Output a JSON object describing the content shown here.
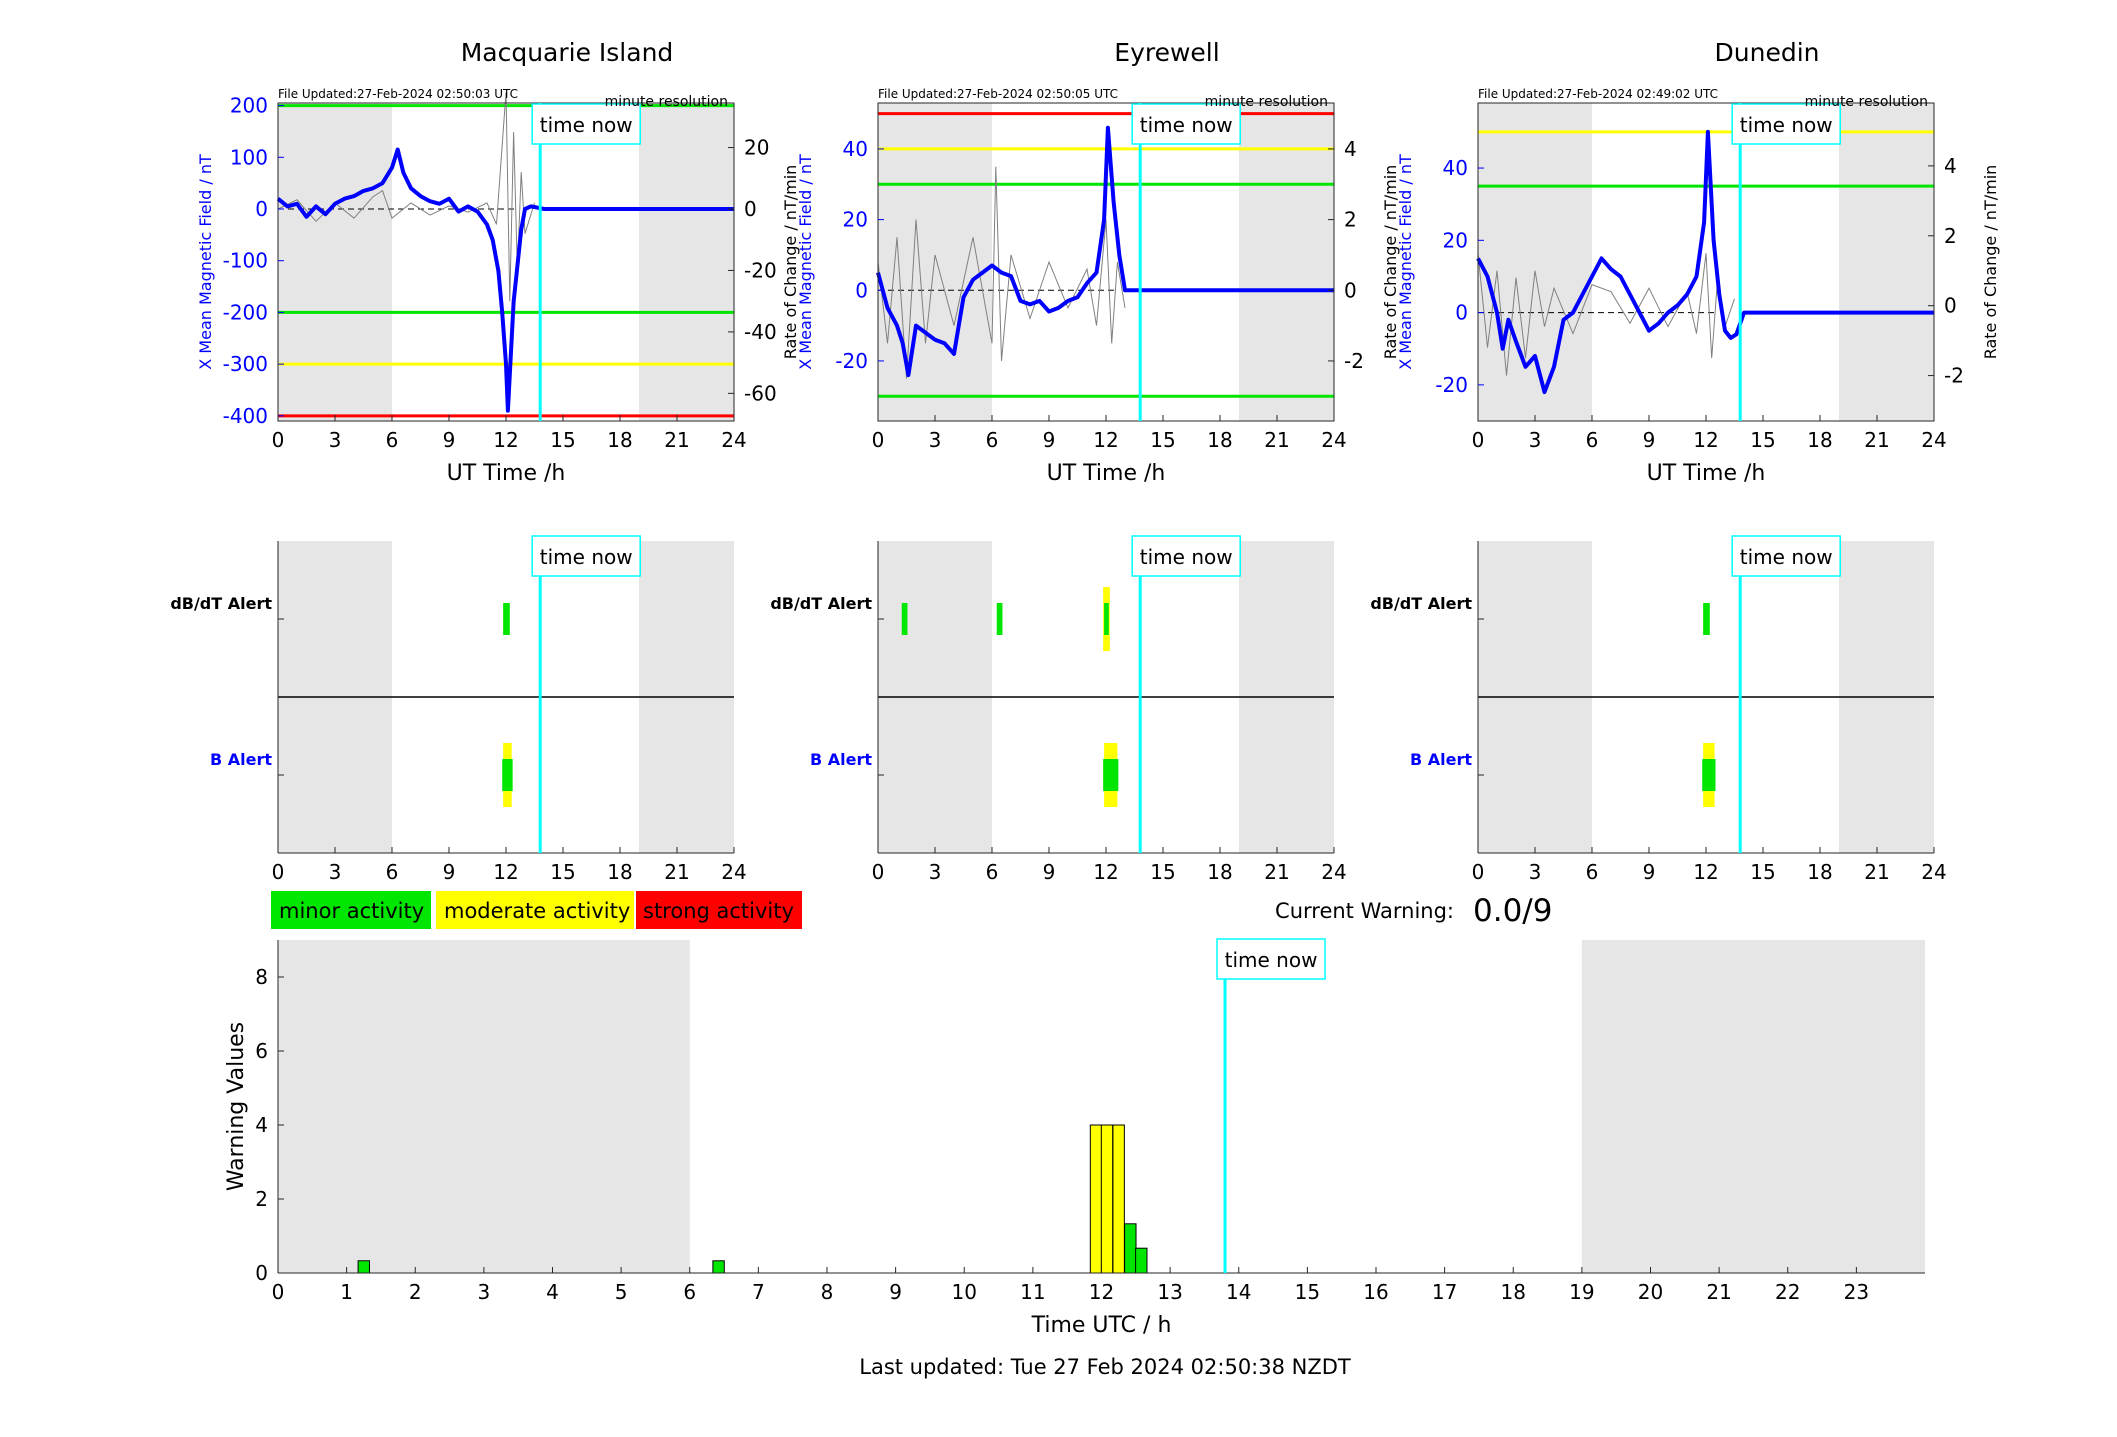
{
  "page": {
    "last_updated": "Last updated: Tue 27 Feb 2024 02:50:38 NZDT"
  },
  "now_label": "time now",
  "now_hour": 13.8,
  "colors": {
    "minor": "#00e600",
    "moderate": "#ffff00",
    "strong": "#ff0000",
    "field": "#0000ff",
    "rate": "#808080",
    "now": "#00ffff",
    "shade": "#e6e6e6"
  },
  "station_axes": {
    "x_label": "UT Time /h",
    "x_ticks": [
      "0",
      "3",
      "6",
      "9",
      "12",
      "15",
      "18",
      "21",
      "24"
    ],
    "left_label": "X Mean Magnetic Field / nT",
    "right_label": "Rate of Change / nT/min",
    "updated_prefix": "File Updated:",
    "resolution": "minute resolution"
  },
  "alert_labels": {
    "dbdt": "dB/dT Alert",
    "b": "B Alert"
  },
  "legend": [
    "minor activity",
    "moderate activity",
    "strong activity"
  ],
  "current_warning": {
    "label": "Current Warning:",
    "value": "0.0/9"
  },
  "chart_data": [
    {
      "type": "line",
      "title": "Macquarie Island",
      "file_updated": "27-Feb-2024 02:50:03 UTC",
      "xlim": [
        0,
        24
      ],
      "ylim_left": [
        -410,
        205
      ],
      "ylim_right": [
        -69,
        34.5
      ],
      "yticks_left": [
        200,
        100,
        0,
        -100,
        -200,
        -300,
        -400
      ],
      "yticks_right": [
        20,
        0,
        -20,
        -40,
        -60
      ],
      "night_shading": [
        [
          0,
          6
        ],
        [
          19,
          24
        ]
      ],
      "thresholds": [
        {
          "value": 200,
          "color": "green"
        },
        {
          "value": -200,
          "color": "green"
        },
        {
          "value": -300,
          "color": "yellow"
        },
        {
          "value": -400,
          "color": "red"
        }
      ],
      "field_series": {
        "x": [
          0,
          0.5,
          1,
          1.5,
          2,
          2.5,
          3,
          3.5,
          4,
          4.5,
          5,
          5.5,
          6,
          6.3,
          6.6,
          7,
          7.5,
          8,
          8.5,
          9,
          9.5,
          10,
          10.5,
          11,
          11.3,
          11.6,
          11.8,
          12,
          12.1,
          12.2,
          12.4,
          12.6,
          12.8,
          13,
          13.3,
          13.6,
          14,
          24
        ],
        "y": [
          20,
          5,
          10,
          -15,
          5,
          -10,
          10,
          20,
          25,
          35,
          40,
          50,
          80,
          115,
          70,
          40,
          25,
          15,
          10,
          20,
          -5,
          5,
          -5,
          -30,
          -60,
          -120,
          -200,
          -300,
          -390,
          -320,
          -180,
          -110,
          -40,
          0,
          5,
          3,
          0,
          0
        ]
      },
      "rate_series": {
        "x": [
          0,
          1,
          2,
          3,
          4,
          5,
          5.5,
          6,
          7,
          8,
          9,
          10,
          11,
          11.5,
          12,
          12.2,
          12.4,
          12.6,
          12.8,
          13,
          13.5
        ],
        "y": [
          0,
          3,
          -4,
          2,
          -3,
          4,
          6,
          -3,
          2,
          -2,
          1,
          -1,
          2,
          -5,
          38,
          -30,
          25,
          -20,
          12,
          -8,
          2
        ]
      },
      "alerts": {
        "dbdt": [
          {
            "start": 11.85,
            "end": 12.2,
            "level": "minor"
          }
        ],
        "b": [
          {
            "start": 11.85,
            "end": 12.3,
            "level": "moderate"
          },
          {
            "start": 11.8,
            "end": 12.35,
            "level": "minor"
          }
        ]
      }
    },
    {
      "type": "line",
      "title": "Eyrewell",
      "file_updated": "27-Feb-2024 02:50:05 UTC",
      "xlim": [
        0,
        24
      ],
      "ylim_left": [
        -37,
        53
      ],
      "ylim_right": [
        -3.7,
        5.3
      ],
      "yticks_left": [
        40,
        20,
        0,
        -20
      ],
      "yticks_right": [
        4,
        2,
        0,
        -2
      ],
      "night_shading": [
        [
          0,
          6
        ],
        [
          19,
          24
        ]
      ],
      "thresholds": [
        {
          "value": 50,
          "color": "red"
        },
        {
          "value": 40,
          "color": "yellow"
        },
        {
          "value": 30,
          "color": "green"
        },
        {
          "value": -30,
          "color": "green"
        }
      ],
      "field_series": {
        "x": [
          0,
          0.5,
          1,
          1.3,
          1.6,
          2,
          2.5,
          3,
          3.5,
          4,
          4.5,
          5,
          5.5,
          6,
          6.5,
          7,
          7.5,
          8,
          8.5,
          9,
          9.5,
          10,
          10.5,
          11,
          11.5,
          11.9,
          12.1,
          12.4,
          12.7,
          13,
          13.2,
          24
        ],
        "y": [
          5,
          -5,
          -10,
          -15,
          -24,
          -10,
          -12,
          -14,
          -15,
          -18,
          -2,
          3,
          5,
          7,
          5,
          4,
          -3,
          -4,
          -3,
          -6,
          -5,
          -3,
          -2,
          2,
          5,
          20,
          46,
          25,
          10,
          0,
          0,
          0
        ]
      },
      "rate_series": {
        "x": [
          0,
          0.5,
          1,
          1.5,
          2,
          2.5,
          3,
          4,
          5,
          6,
          6.2,
          6.5,
          7,
          8,
          9,
          10,
          11,
          11.5,
          12,
          12.3,
          12.6,
          13
        ],
        "y": [
          0.8,
          -1.5,
          1.5,
          -2.5,
          2,
          -1.5,
          1,
          -1,
          1.5,
          -1.5,
          3.5,
          -2,
          1,
          -0.8,
          0.8,
          -0.5,
          0.6,
          -1,
          2,
          -1.5,
          0.8,
          -0.5
        ]
      },
      "alerts": {
        "dbdt": [
          {
            "start": 1.25,
            "end": 1.55,
            "level": "minor"
          },
          {
            "start": 6.25,
            "end": 6.55,
            "level": "minor"
          },
          {
            "start": 11.85,
            "end": 12.2,
            "level": "moderate"
          },
          {
            "start": 11.9,
            "end": 12.15,
            "level": "minor"
          }
        ],
        "b": [
          {
            "start": 11.9,
            "end": 12.6,
            "level": "moderate"
          },
          {
            "start": 11.85,
            "end": 12.65,
            "level": "minor"
          }
        ]
      }
    },
    {
      "type": "line",
      "title": "Dunedin",
      "file_updated": "27-Feb-2024 02:49:02 UTC",
      "xlim": [
        0,
        24
      ],
      "ylim_left": [
        -30,
        58
      ],
      "ylim_right": [
        -3.3,
        5.8
      ],
      "yticks_left": [
        40,
        20,
        0,
        -20
      ],
      "yticks_right": [
        4,
        2,
        0,
        -2
      ],
      "night_shading": [
        [
          0,
          6
        ],
        [
          19,
          24
        ]
      ],
      "thresholds": [
        {
          "value": 50,
          "color": "yellow"
        },
        {
          "value": 35,
          "color": "green"
        }
      ],
      "field_series": {
        "x": [
          0,
          0.5,
          1,
          1.3,
          1.6,
          2,
          2.5,
          3,
          3.5,
          4,
          4.5,
          5,
          5.5,
          6,
          6.5,
          7,
          7.5,
          8,
          8.5,
          9,
          9.5,
          10,
          10.5,
          11,
          11.5,
          11.9,
          12.1,
          12.4,
          12.7,
          13,
          13.3,
          13.6,
          14,
          24
        ],
        "y": [
          15,
          10,
          0,
          -10,
          -2,
          -8,
          -15,
          -12,
          -22,
          -15,
          -2,
          0,
          5,
          10,
          15,
          12,
          10,
          5,
          0,
          -5,
          -3,
          0,
          2,
          5,
          10,
          25,
          50,
          20,
          5,
          -5,
          -7,
          -6,
          0,
          0
        ]
      },
      "rate_series": {
        "x": [
          0,
          0.5,
          1,
          1.5,
          2,
          2.5,
          3,
          3.5,
          4,
          5,
          6,
          7,
          8,
          9,
          10,
          11,
          11.5,
          12,
          12.3,
          12.6,
          13,
          13.5
        ],
        "y": [
          1.5,
          -1.2,
          1,
          -2,
          0.8,
          -1.5,
          1,
          -0.6,
          0.5,
          -0.8,
          0.6,
          0.4,
          -0.5,
          0.5,
          -0.6,
          0.4,
          -0.8,
          1.5,
          -1.5,
          0.7,
          -0.6,
          0.2
        ]
      },
      "alerts": {
        "dbdt": [
          {
            "start": 11.85,
            "end": 12.2,
            "level": "minor"
          }
        ],
        "b": [
          {
            "start": 11.85,
            "end": 12.45,
            "level": "moderate"
          },
          {
            "start": 11.8,
            "end": 12.5,
            "level": "minor"
          }
        ]
      }
    },
    {
      "type": "bar",
      "title": "",
      "xlabel": "Time UTC / h",
      "ylabel": "Warning Values",
      "xlim": [
        0,
        24
      ],
      "ylim": [
        0,
        9
      ],
      "xticks": [
        "0",
        "1",
        "2",
        "3",
        "4",
        "5",
        "6",
        "7",
        "8",
        "9",
        "10",
        "11",
        "12",
        "13",
        "14",
        "15",
        "16",
        "17",
        "18",
        "19",
        "20",
        "21",
        "22",
        "23"
      ],
      "yticks": [
        0,
        2,
        4,
        6,
        8
      ],
      "night_shading": [
        [
          0,
          6
        ],
        [
          19,
          24
        ]
      ],
      "bars": [
        {
          "x": 1.25,
          "value": 0.33,
          "level": "minor"
        },
        {
          "x": 6.42,
          "value": 0.33,
          "level": "minor"
        },
        {
          "x": 11.92,
          "value": 4,
          "level": "moderate"
        },
        {
          "x": 12.08,
          "value": 4,
          "level": "moderate"
        },
        {
          "x": 12.25,
          "value": 4,
          "level": "moderate"
        },
        {
          "x": 12.42,
          "value": 1.33,
          "level": "minor"
        },
        {
          "x": 12.58,
          "value": 0.67,
          "level": "minor"
        }
      ],
      "bar_width": 0.166
    }
  ]
}
